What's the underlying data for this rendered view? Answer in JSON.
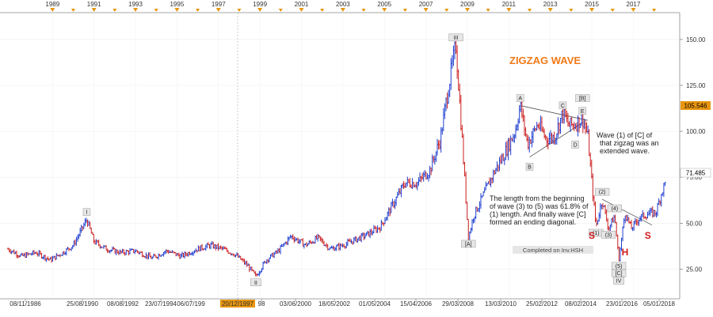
{
  "chart_data": {
    "type": "bar",
    "title": "ZIGZAG WAVE",
    "y_ticks": [
      "150.00",
      "125.00",
      "100.00",
      "75.00",
      "50.00",
      "25.00"
    ],
    "current_price_label": "105.546",
    "last_price_label": "71.485",
    "top_year_ticks": [
      "1989",
      "1991",
      "1993",
      "1995",
      "1997",
      "1999",
      "2001",
      "2003",
      "2005",
      "2007",
      "2009",
      "2011",
      "2013",
      "2015",
      "2017"
    ],
    "x_date_labels": [
      "08/11/1986",
      "25/08/1990",
      "08/08/1992",
      "23/07/1994",
      "06/07/199",
      "20/12/1997",
      "98",
      "03/06/2000",
      "18/05/2002",
      "01/05/2004",
      "15/04/2006",
      "29/03/2008",
      "13/03/2010",
      "25/02/2012",
      "08/02/2014",
      "23/01/2016",
      "05/01/2018"
    ],
    "highlighted_date": "20/12/1997",
    "ylim": [
      11,
      162
    ],
    "series": [
      {
        "price_path": [
          [
            1986.85,
            36
          ],
          [
            1987.5,
            32
          ],
          [
            1988.2,
            34
          ],
          [
            1988.9,
            30
          ],
          [
            1989.5,
            34
          ],
          [
            1990.0,
            38
          ],
          [
            1990.65,
            52
          ],
          [
            1991.0,
            40
          ],
          [
            1991.6,
            36
          ],
          [
            1992.3,
            34
          ],
          [
            1993.0,
            35
          ],
          [
            1993.8,
            31
          ],
          [
            1994.5,
            35
          ],
          [
            1995.2,
            32
          ],
          [
            1996.0,
            36
          ],
          [
            1996.6,
            38
          ],
          [
            1997.2,
            36
          ],
          [
            1997.8,
            33
          ],
          [
            1998.4,
            27
          ],
          [
            1998.8,
            21
          ],
          [
            1999.3,
            30
          ],
          [
            1999.9,
            35
          ],
          [
            2000.5,
            43
          ],
          [
            2001.2,
            38
          ],
          [
            2001.8,
            42
          ],
          [
            2002.4,
            36
          ],
          [
            2003.0,
            38
          ],
          [
            2003.6,
            41
          ],
          [
            2004.2,
            44
          ],
          [
            2004.8,
            48
          ],
          [
            2005.4,
            60
          ],
          [
            2006.0,
            72
          ],
          [
            2006.6,
            72
          ],
          [
            2007.2,
            79
          ],
          [
            2007.7,
            96
          ],
          [
            2008.1,
            125
          ],
          [
            2008.45,
            147
          ],
          [
            2008.75,
            95
          ],
          [
            2009.05,
            42
          ],
          [
            2009.3,
            54
          ],
          [
            2009.8,
            66
          ],
          [
            2010.3,
            78
          ],
          [
            2010.8,
            88
          ],
          [
            2011.3,
            100
          ],
          [
            2011.55,
            114
          ],
          [
            2011.9,
            93
          ],
          [
            2012.4,
            104
          ],
          [
            2012.8,
            96
          ],
          [
            2013.2,
            97
          ],
          [
            2013.6,
            110
          ],
          [
            2013.9,
            103
          ],
          [
            2014.2,
            104
          ],
          [
            2014.55,
            107
          ],
          [
            2014.8,
            98
          ],
          [
            2015.0,
            72
          ],
          [
            2015.2,
            48
          ],
          [
            2015.5,
            63
          ],
          [
            2015.8,
            47
          ],
          [
            2016.1,
            54
          ],
          [
            2016.3,
            30
          ],
          [
            2016.6,
            56
          ],
          [
            2016.9,
            47
          ],
          [
            2017.3,
            53
          ],
          [
            2017.7,
            55
          ],
          [
            2018.1,
            56
          ],
          [
            2018.4,
            68
          ],
          [
            2018.55,
            72
          ]
        ]
      }
    ],
    "wave_labels": [
      {
        "text": "I",
        "x": 1990.65,
        "y": 52,
        "pos": "above"
      },
      {
        "text": "II",
        "x": 1998.8,
        "y": 21,
        "pos": "below"
      },
      {
        "text": "III",
        "x": 2008.45,
        "y": 147,
        "pos": "above"
      },
      {
        "text": "[A]",
        "x": 2009.05,
        "y": 42,
        "pos": "below"
      },
      {
        "text": "A",
        "x": 2011.55,
        "y": 114,
        "pos": "above"
      },
      {
        "text": "B",
        "x": 2012.0,
        "y": 84,
        "pos": "below"
      },
      {
        "text": "C",
        "x": 2013.6,
        "y": 110,
        "pos": "above"
      },
      {
        "text": "[B]",
        "x": 2014.55,
        "y": 114,
        "pos": "above"
      },
      {
        "text": "E",
        "x": 2014.55,
        "y": 107,
        "pos": "above"
      },
      {
        "text": "D",
        "x": 2014.2,
        "y": 96,
        "pos": "below"
      },
      {
        "text": "(1)",
        "x": 2015.2,
        "y": 48,
        "pos": "below"
      },
      {
        "text": "(2)",
        "x": 2015.5,
        "y": 63,
        "pos": "above"
      },
      {
        "text": "(3)",
        "x": 2015.8,
        "y": 47,
        "pos": "below"
      },
      {
        "text": "(4)",
        "x": 2016.1,
        "y": 54,
        "pos": "above"
      },
      {
        "text": "(5)",
        "x": 2016.3,
        "y": 30,
        "pos": "below"
      },
      {
        "text": "[C]",
        "x": 2016.3,
        "y": 26,
        "pos": "below"
      },
      {
        "text": "IV",
        "x": 2016.3,
        "y": 22,
        "pos": "below"
      }
    ],
    "pattern_labels": [
      {
        "text": "S",
        "x": 2015.0,
        "y": 45
      },
      {
        "text": "H",
        "x": 2016.6,
        "y": 36
      },
      {
        "text": "S",
        "x": 2017.7,
        "y": 45
      }
    ],
    "annotations": [
      {
        "lines": [
          "Wave (1) of [C] of",
          "that zigzag was an",
          "extended wave."
        ]
      },
      {
        "lines": [
          "The length from the beginning",
          "of wave (3) to (5) was 61.8% of",
          "(1) length. And finally wave [C]",
          "formed an ending diagonal."
        ]
      }
    ],
    "watermark": "Completed on Inv.HSH",
    "colors": {
      "up": "#1f3fd0",
      "down": "#cc1f1f",
      "title": "#f07a18",
      "pattern": "#d01c1c",
      "marker": "#e8960f",
      "highlight": "#e8960f"
    }
  }
}
